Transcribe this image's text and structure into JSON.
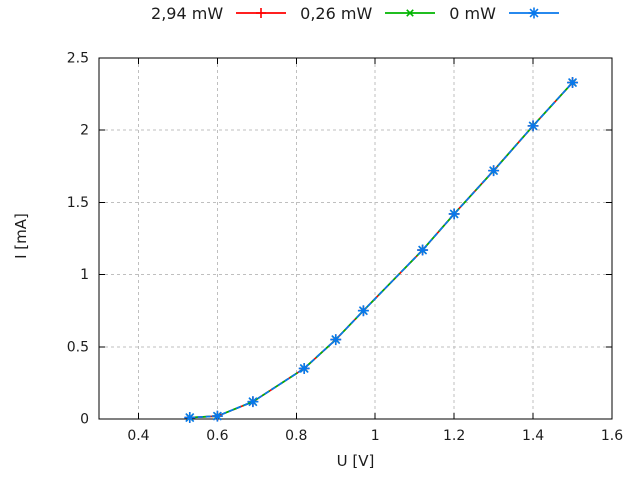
{
  "colors": {
    "grid": "#bfbfbf",
    "axis": "#000000",
    "text": "#1c1c1c",
    "background": "#ffffff"
  },
  "chart_data": {
    "type": "line",
    "title": "",
    "xlabel": "U [V]",
    "ylabel": "I [mA]",
    "xlim": [
      0.3,
      1.6
    ],
    "ylim": [
      0,
      2.5
    ],
    "xticks": [
      0.4,
      0.6,
      0.8,
      1,
      1.2,
      1.4,
      1.6
    ],
    "xtick_labels": [
      "0.4",
      "0.6",
      "0.8",
      "1",
      "1.2",
      "1.4",
      "1.6"
    ],
    "yticks": [
      0,
      0.5,
      1,
      1.5,
      2,
      2.5
    ],
    "ytick_labels": [
      "0",
      "0.5",
      "1",
      "1.5",
      "2",
      "2.5"
    ],
    "grid": true,
    "legend_position": "top-center-horizontal",
    "note": "Three I-V curves (diode/solar-cell measurement at different light power) overlap almost exactly; identical sample points visible, blue drawn on top.",
    "x": [
      0.53,
      0.6,
      0.69,
      0.82,
      0.9,
      0.97,
      1.12,
      1.2,
      1.3,
      1.4,
      1.5
    ],
    "series": [
      {
        "name": "2,94 mW",
        "color": "#ff0000",
        "marker": "plus",
        "values": [
          0.01,
          0.02,
          0.12,
          0.35,
          0.55,
          0.75,
          1.17,
          1.42,
          1.72,
          2.03,
          2.33
        ]
      },
      {
        "name": "0,26 mW",
        "color": "#00b400",
        "marker": "x",
        "values": [
          0.01,
          0.02,
          0.12,
          0.35,
          0.55,
          0.75,
          1.17,
          1.42,
          1.72,
          2.03,
          2.33
        ]
      },
      {
        "name": "0 mW",
        "color": "#0878ec",
        "marker": "star",
        "values": [
          0.01,
          0.02,
          0.12,
          0.35,
          0.55,
          0.75,
          1.17,
          1.42,
          1.72,
          2.03,
          2.33
        ]
      }
    ]
  }
}
